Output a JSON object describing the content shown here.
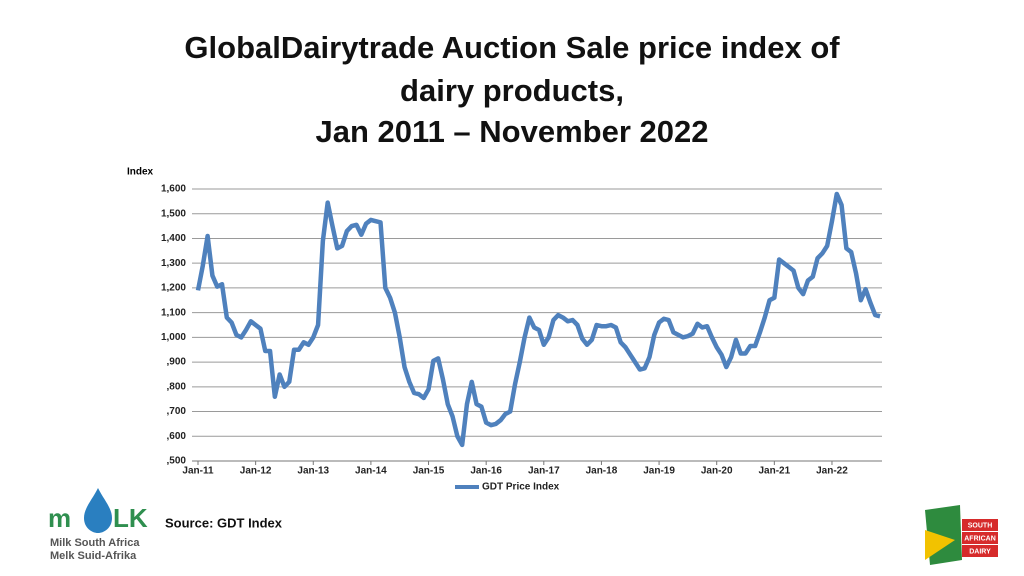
{
  "chart_data": {
    "type": "line",
    "title": [
      "GlobalDairytrade Auction Sale price index of",
      "dairy products,",
      "Jan 2011 – November 2022"
    ],
    "ylabel": "Index",
    "categories": [
      "Jan-11",
      null,
      null,
      null,
      null,
      null,
      null,
      null,
      null,
      null,
      null,
      null,
      "Jan-12",
      null,
      null,
      null,
      null,
      null,
      null,
      null,
      null,
      null,
      null,
      null,
      "Jan-13",
      null,
      null,
      null,
      null,
      null,
      null,
      null,
      null,
      null,
      null,
      null,
      "Jan-14",
      null,
      null,
      null,
      null,
      null,
      null,
      null,
      null,
      null,
      null,
      null,
      "Jan-15",
      null,
      null,
      null,
      null,
      null,
      null,
      null,
      null,
      null,
      null,
      null,
      "Jan-16",
      null,
      null,
      null,
      null,
      null,
      null,
      null,
      null,
      null,
      null,
      null,
      "Jan-17",
      null,
      null,
      null,
      null,
      null,
      null,
      null,
      null,
      null,
      null,
      null,
      "Jan-18",
      null,
      null,
      null,
      null,
      null,
      null,
      null,
      null,
      null,
      null,
      null,
      "Jan-19",
      null,
      null,
      null,
      null,
      null,
      null,
      null,
      null,
      null,
      null,
      null,
      "Jan-20",
      null,
      null,
      null,
      null,
      null,
      null,
      null,
      null,
      null,
      null,
      null,
      "Jan-21",
      null,
      null,
      null,
      null,
      null,
      null,
      null,
      null,
      null,
      null,
      null,
      "Jan-22",
      null,
      null,
      null,
      null,
      null,
      null,
      null,
      null,
      null,
      null
    ],
    "series": [
      {
        "name": "GDT Price Index",
        "color": "#4f81bd",
        "values": [
          1190,
          1290,
          1410,
          1250,
          1205,
          1215,
          1080,
          1060,
          1010,
          1000,
          1030,
          1065,
          1050,
          1035,
          945,
          945,
          760,
          850,
          800,
          820,
          950,
          950,
          980,
          970,
          1000,
          1050,
          1390,
          1545,
          1450,
          1360,
          1370,
          1430,
          1450,
          1455,
          1415,
          1460,
          1475,
          1470,
          1465,
          1200,
          1160,
          1100,
          1000,
          880,
          820,
          775,
          770,
          755,
          790,
          905,
          915,
          830,
          730,
          680,
          600,
          565,
          730,
          820,
          730,
          720,
          655,
          645,
          650,
          665,
          690,
          700,
          810,
          900,
          1000,
          1080,
          1040,
          1030,
          970,
          1000,
          1070,
          1090,
          1080,
          1065,
          1070,
          1050,
          995,
          970,
          990,
          1050,
          1045,
          1045,
          1050,
          1040,
          980,
          960,
          930,
          900,
          870,
          875,
          920,
          1010,
          1060,
          1075,
          1070,
          1020,
          1010,
          1000,
          1005,
          1015,
          1055,
          1040,
          1045,
          1000,
          960,
          930,
          880,
          920,
          990,
          935,
          935,
          965,
          965,
          1020,
          1080,
          1150,
          1160,
          1315,
          1300,
          1285,
          1270,
          1200,
          1175,
          1230,
          1245,
          1320,
          1340,
          1370,
          1470,
          1580,
          1535,
          1360,
          1345,
          1260,
          1150,
          1195,
          1140,
          1090,
          1085
        ]
      }
    ],
    "ylim": [
      500,
      1600
    ],
    "yticks": [
      {
        "value": 500,
        "label": ",500"
      },
      {
        "value": 600,
        "label": ",600"
      },
      {
        "value": 700,
        "label": ",700"
      },
      {
        "value": 800,
        "label": ",800"
      },
      {
        "value": 900,
        "label": ",900"
      },
      {
        "value": 1000,
        "label": "1,000"
      },
      {
        "value": 1100,
        "label": "1,100"
      },
      {
        "value": 1200,
        "label": "1,200"
      },
      {
        "value": 1300,
        "label": "1,300"
      },
      {
        "value": 1400,
        "label": "1,400"
      },
      {
        "value": 1500,
        "label": "1,500"
      },
      {
        "value": 1600,
        "label": "1,600"
      }
    ],
    "grid": true,
    "legend": "bottom"
  },
  "slide": {
    "source": "Source: GDT Index",
    "logo_left": {
      "mark_left": "m",
      "mark_right": "LK",
      "line1": "Milk South Africa",
      "line2": "Melk Suid-Afrika"
    },
    "logo_right": {
      "line1": "SOUTH",
      "line2": "AFRICAN",
      "line3": "DAIRY"
    }
  }
}
